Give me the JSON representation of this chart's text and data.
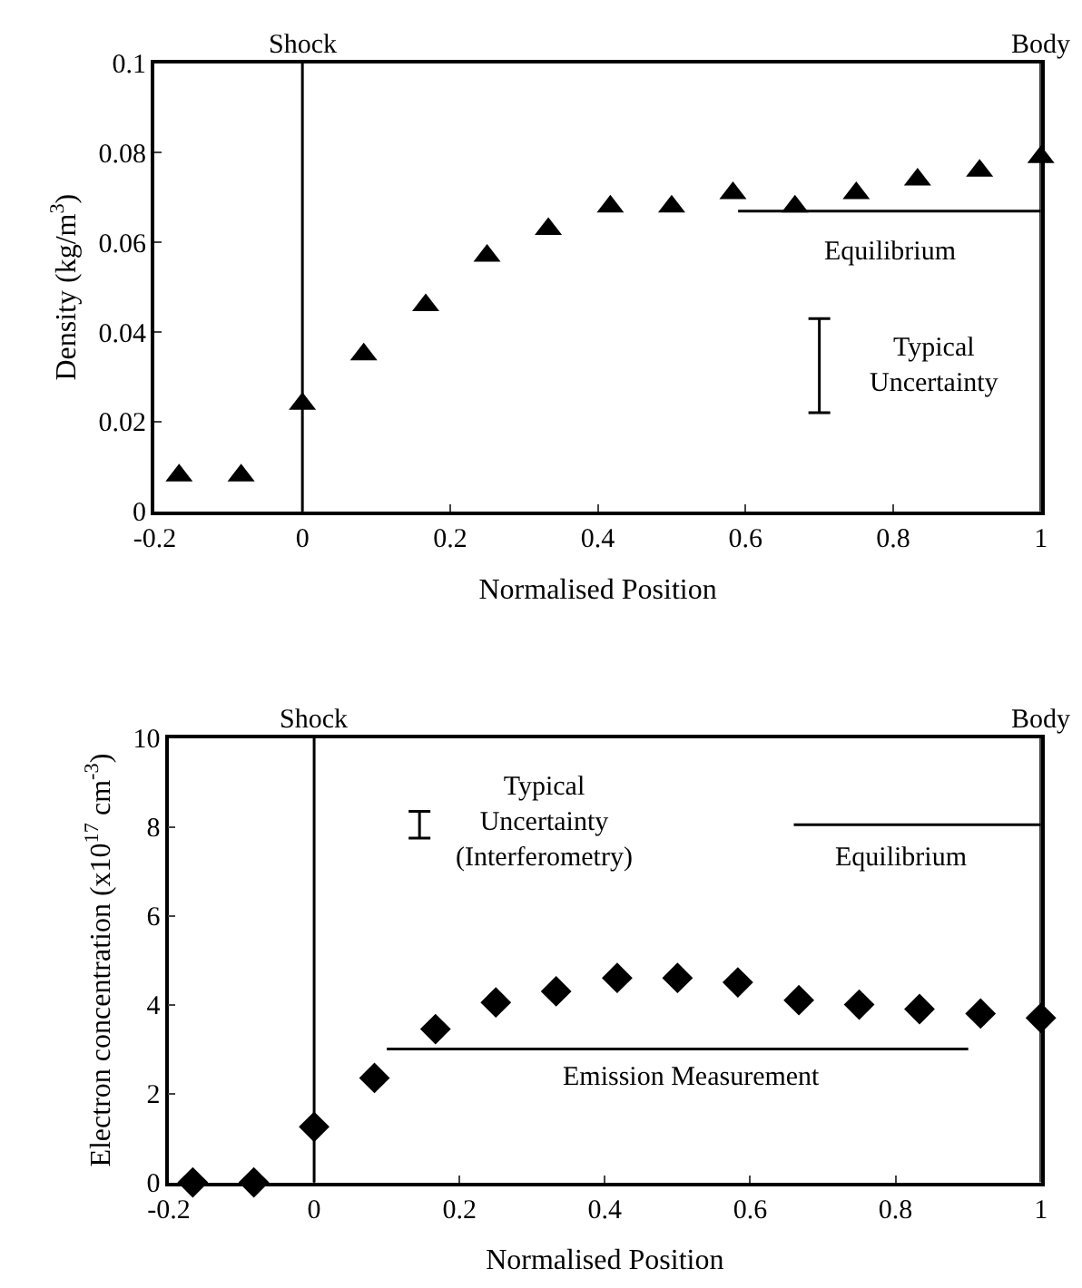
{
  "chart_data": [
    {
      "type": "scatter",
      "xlabel": "Normalised Position",
      "ylabel": "Density (kg/m$^{3}$)",
      "x": [
        -0.167,
        -0.083,
        0,
        0.083,
        0.167,
        0.25,
        0.333,
        0.417,
        0.5,
        0.583,
        0.667,
        0.75,
        0.833,
        0.917,
        1
      ],
      "series": [
        {
          "color": "#000000",
          "marker": "triangle",
          "values": [
            0.008,
            0.008,
            0.024,
            0.035,
            0.046,
            0.057,
            0.063,
            0.068,
            0.068,
            0.071,
            0.068,
            0.071,
            0.074,
            0.076,
            0.079
          ]
        },
        {
          "type": "line",
          "color": "#000000",
          "marker": "none",
          "x": [
            0.59,
            1
          ],
          "values": [
            0.067,
            0.067
          ]
        },
        {
          "type": "line",
          "color": "#000000",
          "marker": "none",
          "x": [
            0.7,
            0.7
          ],
          "values": [
            0.022,
            0.043
          ],
          "errors": [
            0,
            0
          ]
        }
      ],
      "ref_lines": [
        {
          "axis": "x",
          "value": 0,
          "label": "Shock"
        },
        {
          "axis": "x",
          "value": 1,
          "label": "Body"
        }
      ],
      "annotations": [
        "Equilibrium",
        "Typical\nUncertainty"
      ],
      "xlim": [
        -0.2,
        1
      ],
      "xticks": [
        -0.2,
        0,
        0.2,
        0.4,
        0.6,
        0.8,
        1
      ],
      "ylim": [
        0,
        0.1
      ],
      "yticks": [
        0,
        0.02,
        0.04,
        0.06,
        0.08,
        0.1
      ]
    },
    {
      "type": "scatter",
      "xlabel": "Normalised Position",
      "ylabel": "Electron concentration (x10$^{17}$ cm$^{-3}$)",
      "x": [
        -0.167,
        -0.083,
        0,
        0.083,
        0.167,
        0.25,
        0.333,
        0.417,
        0.5,
        0.583,
        0.667,
        0.75,
        0.833,
        0.917,
        1
      ],
      "series": [
        {
          "color": "#000000",
          "marker": "diamond",
          "values": [
            0,
            0,
            1.25,
            2.35,
            3.45,
            4.05,
            4.3,
            4.6,
            4.6,
            4.5,
            4.1,
            4.0,
            3.9,
            3.8,
            3.7
          ]
        },
        {
          "type": "line",
          "color": "#000000",
          "marker": "none",
          "x": [
            0.66,
            1
          ],
          "values": [
            8.05,
            8.05
          ]
        },
        {
          "type": "line",
          "color": "#000000",
          "marker": "none",
          "x": [
            0.1,
            0.9
          ],
          "values": [
            3.0,
            3.0
          ]
        },
        {
          "type": "line",
          "color": "#000000",
          "marker": "none",
          "x": [
            0.145,
            0.145
          ],
          "values": [
            7.75,
            8.35
          ],
          "errors": [
            0,
            0
          ]
        }
      ],
      "ref_lines": [
        {
          "axis": "x",
          "value": 0,
          "label": "Shock"
        },
        {
          "axis": "x",
          "value": 1,
          "label": "Body"
        }
      ],
      "annotations": [
        "Equilibrium",
        "Emission Measurement",
        "Typical\nUncertainty\n(Interferometry)"
      ],
      "xlim": [
        -0.2,
        1
      ],
      "xticks": [
        -0.2,
        0,
        0.2,
        0.4,
        0.6,
        0.8,
        1
      ],
      "ylim": [
        0,
        10
      ],
      "yticks": [
        0,
        2,
        4,
        6,
        8,
        10
      ]
    }
  ]
}
